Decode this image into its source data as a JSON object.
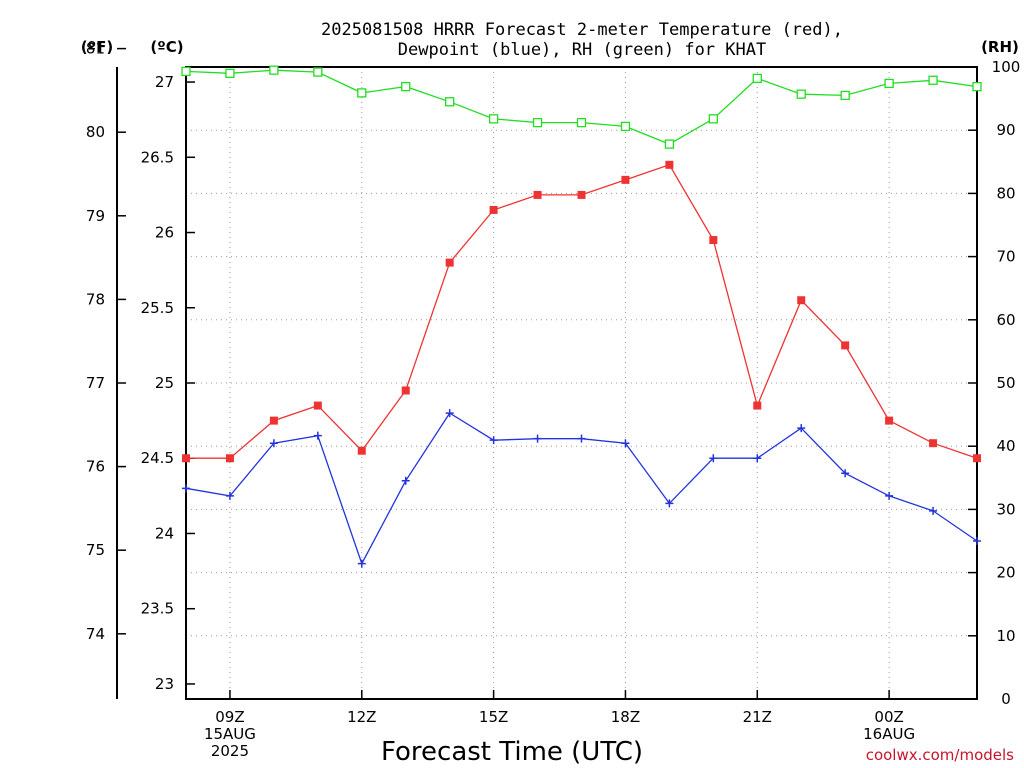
{
  "title_line1": "2025081508 HRRR Forecast 2-meter Temperature (red),",
  "title_line2": "Dewpoint (blue), RH (green) for KHAT",
  "unit_f": "(ºF)",
  "unit_c": "(ºC)",
  "unit_rh": "(RH)",
  "credit": "coolwx.com/models",
  "chart_data": {
    "type": "line",
    "xlabel": "Forecast Time (UTC)",
    "x_hours": [
      8,
      9,
      10,
      11,
      12,
      13,
      14,
      15,
      16,
      17,
      18,
      19,
      20,
      21,
      22,
      23,
      24,
      25,
      26
    ],
    "x_range": [
      8,
      26
    ],
    "x_ticks": [
      {
        "hour": 9,
        "lines": [
          "09Z",
          "15AUG",
          "2025"
        ]
      },
      {
        "hour": 12,
        "lines": [
          "12Z"
        ]
      },
      {
        "hour": 15,
        "lines": [
          "15Z"
        ]
      },
      {
        "hour": 18,
        "lines": [
          "18Z"
        ]
      },
      {
        "hour": 21,
        "lines": [
          "21Z"
        ]
      },
      {
        "hour": 24,
        "lines": [
          "00Z",
          "16AUG"
        ]
      }
    ],
    "y_celsius": {
      "range": [
        22.9,
        27.1
      ],
      "ticks": [
        "23",
        "23.5",
        "24",
        "24.5",
        "25",
        "25.5",
        "26",
        "26.5",
        "27"
      ]
    },
    "y_fahrenheit": {
      "ticks": [
        "74",
        "75",
        "76",
        "77",
        "78",
        "79",
        "80",
        "81"
      ]
    },
    "y_rh": {
      "range": [
        0,
        100
      ],
      "ticks": [
        "0",
        "10",
        "20",
        "30",
        "40",
        "50",
        "60",
        "70",
        "80",
        "90",
        "100"
      ]
    },
    "series": [
      {
        "key": "temperature",
        "unit": "C",
        "color": "#ee3333",
        "marker": "filled-square",
        "values": [
          24.5,
          24.5,
          24.75,
          24.85,
          24.55,
          24.95,
          25.8,
          26.15,
          26.25,
          26.25,
          26.35,
          26.45,
          25.95,
          24.85,
          25.55,
          25.25,
          24.75,
          24.6,
          24.5
        ]
      },
      {
        "key": "dewpoint",
        "unit": "C",
        "color": "#2233dd",
        "marker": "plus",
        "values": [
          24.3,
          24.25,
          24.6,
          24.65,
          23.8,
          24.35,
          24.8,
          24.62,
          24.63,
          24.63,
          24.6,
          24.2,
          24.5,
          24.5,
          24.7,
          24.4,
          24.25,
          24.15,
          23.95
        ]
      },
      {
        "key": "rh",
        "unit": "%",
        "color": "#22dd22",
        "marker": "open-square",
        "values": [
          99.3,
          99.0,
          99.5,
          99.2,
          95.9,
          96.9,
          94.5,
          91.8,
          91.2,
          91.2,
          90.6,
          87.8,
          91.8,
          98.2,
          95.7,
          95.5,
          97.4,
          97.9,
          96.9
        ]
      }
    ]
  }
}
